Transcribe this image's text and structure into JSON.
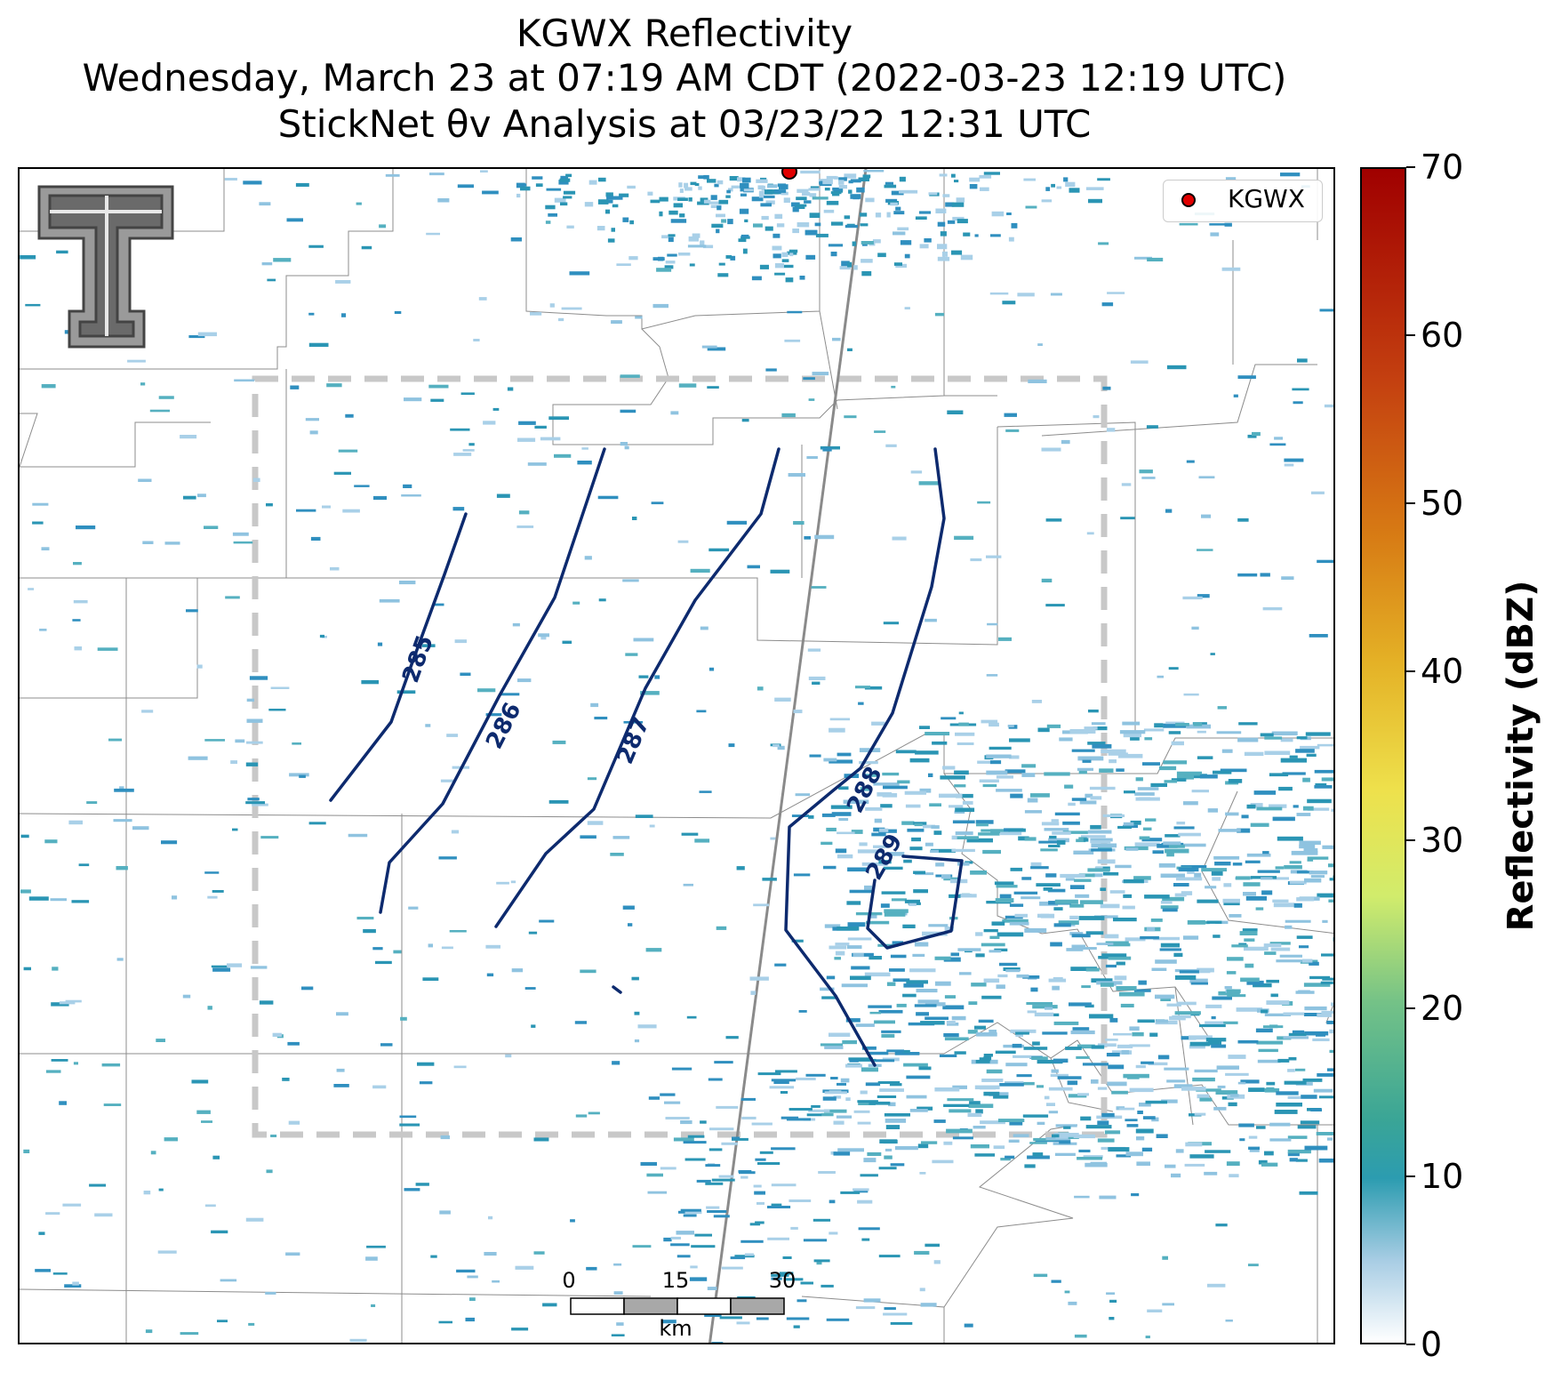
{
  "title": {
    "line1": "KGWX Reflectivity",
    "line2": "Wednesday, March 23 at 07:19 AM CDT (2022-03-23 12:19 UTC)",
    "line3": "StickNet θv Analysis at 03/23/22 12:31 UTC"
  },
  "legend": {
    "label": "KGWX",
    "marker_color": "#e00000"
  },
  "colorbar": {
    "title": "Reflectivity (dBZ)",
    "ticks": [
      "70",
      "60",
      "50",
      "40",
      "30",
      "20",
      "10",
      "0"
    ],
    "range": [
      0,
      70
    ]
  },
  "scalebar": {
    "ticks": [
      "0",
      "15",
      "30"
    ],
    "unit": "km"
  },
  "contours": {
    "color": "#0d2a6e",
    "labels": [
      "285",
      "286",
      "287",
      "288",
      "289"
    ]
  },
  "logo": {
    "name": "Texas Tech double-T logo"
  },
  "colors": {
    "analysis_box": "#c8c8c8",
    "county_lines": "#8c8c8c",
    "echo_main": "#2a95b4",
    "echo_light": "#a9d0e8"
  }
}
